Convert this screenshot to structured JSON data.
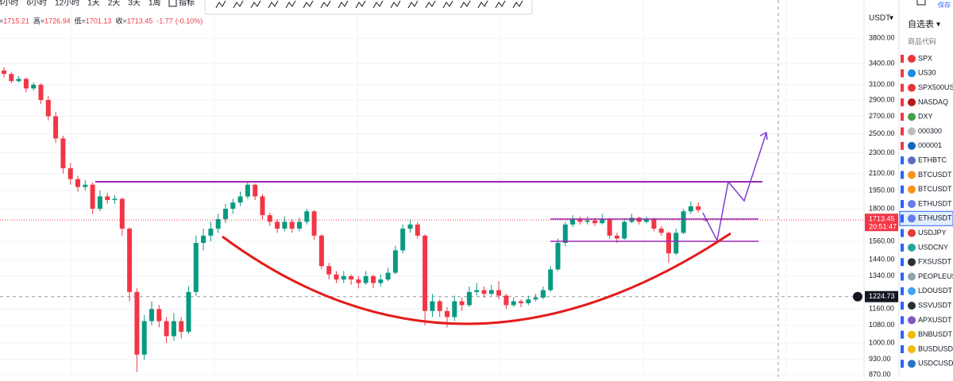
{
  "toolbar": {
    "intervals": [
      "4小时",
      "6小时",
      "12小时",
      "1天",
      "2天",
      "3天",
      "1周"
    ],
    "indicators": "指标",
    "save": "保存"
  },
  "header": {
    "labels": [
      "=",
      "高=",
      "低=",
      "收="
    ],
    "change": "-1.77",
    "change_pct": "(-0.10%)"
  },
  "chart_data": {
    "type": "candlestick",
    "currency": "USDT",
    "log_scale": true,
    "grid": true,
    "up_color": "#089981",
    "down_color": "#f23645",
    "ylim": [
      861,
      4494
    ],
    "yticks": [
      {
        "value": 870,
        "label": "870.00"
      },
      {
        "value": 930,
        "label": "930.00"
      },
      {
        "value": 1000,
        "label": "1000.00"
      },
      {
        "value": 1080,
        "label": "1080.00"
      },
      {
        "value": 1160,
        "label": "1160.00"
      },
      {
        "value": 1340,
        "label": "1340.00"
      },
      {
        "value": 1440,
        "label": "1440.00"
      },
      {
        "value": 1560,
        "label": "1560.00"
      },
      {
        "value": 1800,
        "label": "1800.00"
      },
      {
        "value": 1950,
        "label": "1950.00"
      },
      {
        "value": 2100,
        "label": "2100.00"
      },
      {
        "value": 2300,
        "label": "2300.00"
      },
      {
        "value": 2500,
        "label": "2500.00"
      },
      {
        "value": 2700,
        "label": "2700.00"
      },
      {
        "value": 2900,
        "label": "2900.00"
      },
      {
        "value": 3100,
        "label": "3100.00"
      },
      {
        "value": 3400,
        "label": "3400.00"
      },
      {
        "value": 3800,
        "label": "3800.00"
      }
    ],
    "last_price": 1713.45,
    "countdown": "20:51:47",
    "crosshair_price": 1224.73,
    "ohlc": [
      [
        3300,
        3350,
        3200,
        3250
      ],
      [
        3250,
        3280,
        3120,
        3150
      ],
      [
        3150,
        3220,
        3130,
        3180
      ],
      [
        3180,
        3200,
        3000,
        3050
      ],
      [
        3050,
        3130,
        3020,
        3100
      ],
      [
        3100,
        3120,
        2850,
        2900
      ],
      [
        2900,
        2950,
        2650,
        2700
      ],
      [
        2700,
        2750,
        2400,
        2450
      ],
      [
        2450,
        2480,
        2100,
        2150
      ],
      [
        2150,
        2200,
        2000,
        2050
      ],
      [
        2050,
        2080,
        1940,
        1980
      ],
      [
        1980,
        2040,
        1950,
        2000
      ],
      [
        2000,
        2020,
        1760,
        1800
      ],
      [
        1800,
        1950,
        1780,
        1900
      ],
      [
        1900,
        1930,
        1840,
        1870
      ],
      [
        1870,
        1910,
        1840,
        1880
      ],
      [
        1880,
        1890,
        1600,
        1650
      ],
      [
        1650,
        1660,
        1200,
        1250
      ],
      [
        1250,
        1270,
        880,
        950
      ],
      [
        950,
        1130,
        930,
        1100
      ],
      [
        1100,
        1200,
        1080,
        1160
      ],
      [
        1160,
        1180,
        1070,
        1100
      ],
      [
        1100,
        1120,
        1000,
        1030
      ],
      [
        1030,
        1140,
        1010,
        1100
      ],
      [
        1100,
        1120,
        1020,
        1050
      ],
      [
        1050,
        1280,
        1040,
        1250
      ],
      [
        1250,
        1600,
        1230,
        1550
      ],
      [
        1550,
        1650,
        1500,
        1600
      ],
      [
        1600,
        1700,
        1560,
        1650
      ],
      [
        1650,
        1760,
        1620,
        1720
      ],
      [
        1720,
        1840,
        1690,
        1800
      ],
      [
        1800,
        1880,
        1760,
        1850
      ],
      [
        1850,
        1940,
        1820,
        1900
      ],
      [
        1900,
        2030,
        1880,
        2000
      ],
      [
        2000,
        2010,
        1870,
        1900
      ],
      [
        1900,
        1920,
        1720,
        1750
      ],
      [
        1750,
        1770,
        1670,
        1700
      ],
      [
        1700,
        1720,
        1620,
        1650
      ],
      [
        1650,
        1740,
        1630,
        1700
      ],
      [
        1700,
        1720,
        1620,
        1650
      ],
      [
        1650,
        1730,
        1630,
        1700
      ],
      [
        1700,
        1800,
        1680,
        1780
      ],
      [
        1780,
        1790,
        1570,
        1600
      ],
      [
        1600,
        1610,
        1380,
        1400
      ],
      [
        1400,
        1420,
        1320,
        1350
      ],
      [
        1350,
        1370,
        1300,
        1320
      ],
      [
        1320,
        1370,
        1300,
        1340
      ],
      [
        1340,
        1350,
        1290,
        1320
      ],
      [
        1320,
        1340,
        1270,
        1300
      ],
      [
        1300,
        1370,
        1290,
        1340
      ],
      [
        1340,
        1350,
        1270,
        1300
      ],
      [
        1300,
        1350,
        1280,
        1320
      ],
      [
        1320,
        1390,
        1310,
        1360
      ],
      [
        1360,
        1530,
        1350,
        1500
      ],
      [
        1500,
        1680,
        1480,
        1650
      ],
      [
        1650,
        1720,
        1620,
        1680
      ],
      [
        1680,
        1700,
        1580,
        1600
      ],
      [
        1600,
        1610,
        1080,
        1150
      ],
      [
        1150,
        1240,
        1120,
        1200
      ],
      [
        1200,
        1210,
        1120,
        1150
      ],
      [
        1150,
        1170,
        1070,
        1120
      ],
      [
        1120,
        1230,
        1100,
        1200
      ],
      [
        1200,
        1220,
        1150,
        1180
      ],
      [
        1180,
        1280,
        1170,
        1250
      ],
      [
        1250,
        1300,
        1230,
        1260
      ],
      [
        1260,
        1280,
        1220,
        1240
      ],
      [
        1240,
        1290,
        1230,
        1260
      ],
      [
        1260,
        1310,
        1210,
        1230
      ],
      [
        1230,
        1240,
        1160,
        1180
      ],
      [
        1180,
        1220,
        1170,
        1200
      ],
      [
        1200,
        1210,
        1170,
        1190
      ],
      [
        1190,
        1230,
        1180,
        1210
      ],
      [
        1210,
        1240,
        1200,
        1220
      ],
      [
        1220,
        1280,
        1210,
        1260
      ],
      [
        1260,
        1400,
        1250,
        1380
      ],
      [
        1380,
        1580,
        1370,
        1550
      ],
      [
        1550,
        1700,
        1530,
        1680
      ],
      [
        1680,
        1750,
        1660,
        1720
      ],
      [
        1720,
        1740,
        1680,
        1700
      ],
      [
        1700,
        1740,
        1680,
        1710
      ],
      [
        1710,
        1730,
        1670,
        1690
      ],
      [
        1690,
        1760,
        1680,
        1720
      ],
      [
        1720,
        1730,
        1580,
        1600
      ],
      [
        1600,
        1620,
        1550,
        1580
      ],
      [
        1580,
        1720,
        1570,
        1700
      ],
      [
        1700,
        1760,
        1690,
        1730
      ],
      [
        1730,
        1740,
        1680,
        1700
      ],
      [
        1700,
        1740,
        1690,
        1720
      ],
      [
        1720,
        1730,
        1630,
        1650
      ],
      [
        1650,
        1670,
        1600,
        1620
      ],
      [
        1620,
        1630,
        1420,
        1480
      ],
      [
        1480,
        1650,
        1470,
        1620
      ],
      [
        1620,
        1800,
        1610,
        1780
      ],
      [
        1780,
        1860,
        1760,
        1820
      ],
      [
        1820,
        1850,
        1770,
        1790
      ],
      [
        1715.21,
        1726.94,
        1701.13,
        1713.45
      ]
    ]
  },
  "watchlist": {
    "title": "自选表",
    "column": "商品代码",
    "symbols": [
      {
        "name": "SPX",
        "color": "#e53935"
      },
      {
        "name": "US30",
        "color": "#1e88e5"
      },
      {
        "name": "SPX500USD",
        "color": "#e53935"
      },
      {
        "name": "NASDAQ",
        "color": "#b71c1c"
      },
      {
        "name": "DXY",
        "color": "#43a047"
      },
      {
        "name": "000300",
        "color": "#bdbdbd"
      },
      {
        "name": "000001",
        "color": "#1565c0"
      },
      {
        "name": "ETHBTC",
        "color": "#5c6bc0"
      },
      {
        "name": "BTCUSDT",
        "color": "#f7931a"
      },
      {
        "name": "BTCUSDT",
        "color": "#f7931a"
      },
      {
        "name": "ETHUSDT",
        "color": "#627eea"
      },
      {
        "name": "ETHUSDT",
        "color": "#627eea"
      },
      {
        "name": "USDJPY",
        "color": "#e53935"
      },
      {
        "name": "USDCNY",
        "color": "#26a69a"
      },
      {
        "name": "FXSUSDT",
        "color": "#263238"
      },
      {
        "name": "PEOPLEUSDT",
        "color": "#90a4ae"
      },
      {
        "name": "LDOUSDT",
        "color": "#42a5f5"
      },
      {
        "name": "SSVUSDT",
        "color": "#263238"
      },
      {
        "name": "APXUSDT",
        "color": "#7e57c2"
      },
      {
        "name": "BNBUSDT",
        "color": "#f0b90b"
      },
      {
        "name": "BUSDUSDT",
        "color": "#f0b90b"
      },
      {
        "name": "USDCUSDT",
        "color": "#2775ca"
      }
    ]
  }
}
